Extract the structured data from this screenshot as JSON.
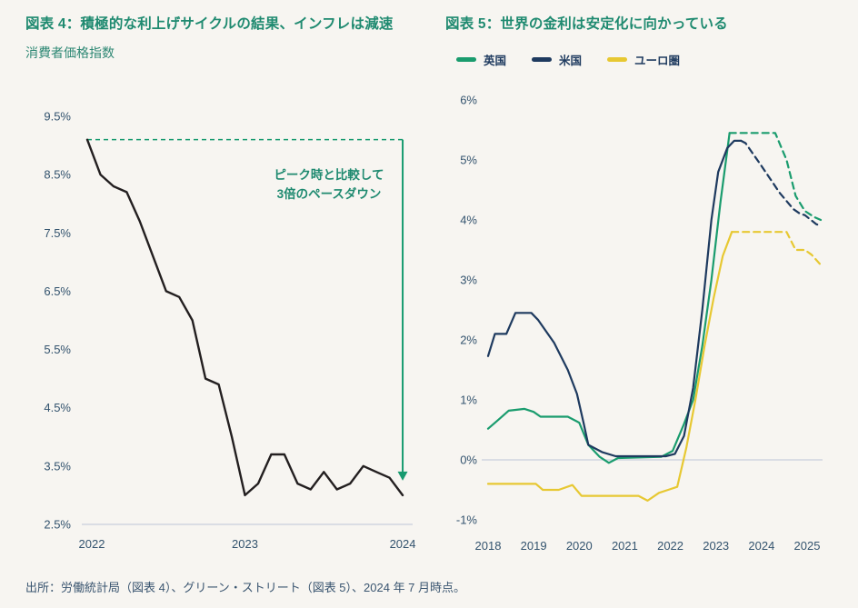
{
  "colors": {
    "background": "#f7f5f1",
    "title_accent": "#1f8a70",
    "accent_green": "#179a6f",
    "navy": "#1e3a5f",
    "yellow": "#e7c832",
    "line_black": "#231f20",
    "axis_text": "#33536e",
    "grid": "#c9cfdc"
  },
  "figure4": {
    "title": "図表 4：積極的な利上げサイクルの結果、インフレは減速",
    "subtitle": "消費者価格指数"
  },
  "figure5": {
    "title": "図表 5：世界の金利は安定化に向かっている",
    "legend": [
      {
        "label": "英国",
        "color": "#1a9c6e"
      },
      {
        "label": "米国",
        "color": "#1e3a5f"
      },
      {
        "label": "ユーロ圏",
        "color": "#e7c832"
      }
    ]
  },
  "source": "出所：労働統計局（図表 4）、グリーン・ストリート（図表 5）、2024 年 7 月時点。",
  "chart_data": [
    {
      "type": "line",
      "title": "図表 4：積極的な利上げサイクルの結果、インフレは減速",
      "subtitle": "消費者価格指数",
      "x_description": "monthly values from the 2022 tick to the 2024 tick",
      "values": [
        9.1,
        8.5,
        8.3,
        8.2,
        7.7,
        7.1,
        6.5,
        6.4,
        6.0,
        5.0,
        4.9,
        4.0,
        3.0,
        3.2,
        3.7,
        3.7,
        3.2,
        3.1,
        3.4,
        3.1,
        3.2,
        3.5,
        3.4,
        3.3,
        3.0
      ],
      "x_tick_labels": [
        "2022",
        "2023",
        "2024"
      ],
      "x_tick_month_index": [
        0,
        12,
        24
      ],
      "y_tick_labels": [
        "9.5%",
        "8.5%",
        "7.5%",
        "6.5%",
        "5.5%",
        "4.5%",
        "3.5%",
        "2.5%"
      ],
      "ylim": [
        2.5,
        9.5
      ],
      "grid": "baseline-only",
      "line_color": "#231f20",
      "peak_line_value": 9.1,
      "arrow_end_value": 3.25,
      "annotation": [
        "ピーク時と比較して",
        "3倍のペースダウン"
      ]
    },
    {
      "type": "line",
      "title": "図表 5：世界の金利は安定化に向かっている",
      "xlim": [
        2018,
        2025.3
      ],
      "ylim": [
        -1,
        6
      ],
      "x_tick_labels": [
        "2018",
        "2019",
        "2020",
        "2021",
        "2022",
        "2023",
        "2024",
        "2025"
      ],
      "y_tick_labels": [
        "6%",
        "5%",
        "4%",
        "3%",
        "2%",
        "1%",
        "0%",
        "-1%"
      ],
      "grid": "zero-line-only",
      "legend_position": "top-left",
      "dashed_segments_meaning": "forecast (rendered dashed in chart)",
      "series": [
        {
          "name": "英国",
          "color": "#1a9c6e",
          "solid": [
            [
              2018.0,
              0.52
            ],
            [
              2018.2,
              0.65
            ],
            [
              2018.45,
              0.82
            ],
            [
              2018.8,
              0.85
            ],
            [
              2019.0,
              0.8
            ],
            [
              2019.15,
              0.72
            ],
            [
              2019.75,
              0.72
            ],
            [
              2020.0,
              0.62
            ],
            [
              2020.2,
              0.25
            ],
            [
              2020.45,
              0.05
            ],
            [
              2020.65,
              -0.05
            ],
            [
              2020.85,
              0.03
            ],
            [
              2021.8,
              0.05
            ],
            [
              2022.05,
              0.15
            ],
            [
              2022.3,
              0.6
            ],
            [
              2022.5,
              1.0
            ],
            [
              2022.7,
              1.9
            ],
            [
              2022.9,
              3.0
            ],
            [
              2023.1,
              4.3
            ],
            [
              2023.3,
              5.45
            ]
          ],
          "dashed": [
            [
              2023.3,
              5.45
            ],
            [
              2024.3,
              5.45
            ],
            [
              2024.55,
              5.0
            ],
            [
              2024.75,
              4.4
            ],
            [
              2024.95,
              4.15
            ],
            [
              2025.15,
              4.05
            ],
            [
              2025.3,
              4.0
            ]
          ]
        },
        {
          "name": "米国",
          "color": "#1e3a5f",
          "solid": [
            [
              2018.0,
              1.73
            ],
            [
              2018.15,
              2.1
            ],
            [
              2018.4,
              2.1
            ],
            [
              2018.6,
              2.45
            ],
            [
              2018.95,
              2.45
            ],
            [
              2019.1,
              2.33
            ],
            [
              2019.45,
              1.95
            ],
            [
              2019.75,
              1.5
            ],
            [
              2019.95,
              1.1
            ],
            [
              2020.1,
              0.6
            ],
            [
              2020.2,
              0.25
            ],
            [
              2020.5,
              0.13
            ],
            [
              2020.8,
              0.06
            ],
            [
              2021.9,
              0.06
            ],
            [
              2022.1,
              0.1
            ],
            [
              2022.3,
              0.4
            ],
            [
              2022.5,
              1.2
            ],
            [
              2022.7,
              2.5
            ],
            [
              2022.9,
              4.0
            ],
            [
              2023.05,
              4.8
            ],
            [
              2023.25,
              5.2
            ],
            [
              2023.4,
              5.32
            ],
            [
              2023.55,
              5.32
            ]
          ],
          "dashed": [
            [
              2023.55,
              5.32
            ],
            [
              2023.65,
              5.28
            ],
            [
              2024.0,
              4.9
            ],
            [
              2024.4,
              4.45
            ],
            [
              2024.7,
              4.18
            ],
            [
              2024.85,
              4.1
            ],
            [
              2024.95,
              4.08
            ],
            [
              2025.2,
              3.93
            ],
            [
              2025.3,
              3.9
            ]
          ]
        },
        {
          "name": "ユーロ圏",
          "color": "#e7c832",
          "solid": [
            [
              2018.0,
              -0.4
            ],
            [
              2019.05,
              -0.4
            ],
            [
              2019.2,
              -0.5
            ],
            [
              2019.55,
              -0.5
            ],
            [
              2019.85,
              -0.42
            ],
            [
              2020.05,
              -0.6
            ],
            [
              2021.3,
              -0.6
            ],
            [
              2021.5,
              -0.68
            ],
            [
              2021.75,
              -0.55
            ],
            [
              2021.95,
              -0.5
            ],
            [
              2022.15,
              -0.45
            ],
            [
              2022.35,
              0.2
            ],
            [
              2022.55,
              1.0
            ],
            [
              2022.75,
              1.9
            ],
            [
              2022.95,
              2.7
            ],
            [
              2023.15,
              3.4
            ],
            [
              2023.35,
              3.8
            ]
          ],
          "dashed": [
            [
              2023.35,
              3.8
            ],
            [
              2024.55,
              3.8
            ],
            [
              2024.75,
              3.5
            ],
            [
              2024.95,
              3.5
            ],
            [
              2025.1,
              3.42
            ],
            [
              2025.3,
              3.25
            ]
          ]
        }
      ]
    }
  ]
}
